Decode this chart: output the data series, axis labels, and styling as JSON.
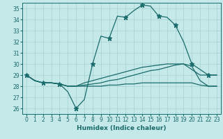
{
  "xlabel": "Humidex (Indice chaleur)",
  "xlim": [
    -0.5,
    23.5
  ],
  "ylim": [
    25.5,
    35.5
  ],
  "yticks": [
    26,
    27,
    28,
    29,
    30,
    31,
    32,
    33,
    34,
    35
  ],
  "xticks": [
    0,
    1,
    2,
    3,
    4,
    5,
    6,
    7,
    8,
    9,
    10,
    11,
    12,
    13,
    14,
    15,
    16,
    17,
    18,
    19,
    20,
    21,
    22,
    23
  ],
  "bg_color": "#c5e8e8",
  "grid_color": "#aad4d4",
  "line_color": "#1a6b6b",
  "lines": [
    [
      29.0,
      28.5,
      28.3,
      28.3,
      28.2,
      27.5,
      26.0,
      26.8,
      30.0,
      32.5,
      32.3,
      34.3,
      34.2,
      34.8,
      35.3,
      35.2,
      34.3,
      34.2,
      33.5,
      32.0,
      30.0,
      29.5,
      29.0,
      29.0
    ],
    [
      29.0,
      28.5,
      28.3,
      28.3,
      28.2,
      28.0,
      28.0,
      28.3,
      28.5,
      28.7,
      28.9,
      29.1,
      29.3,
      29.5,
      29.7,
      29.8,
      29.9,
      30.0,
      30.0,
      30.0,
      29.5,
      29.0,
      29.0,
      29.0
    ],
    [
      29.0,
      28.5,
      28.3,
      28.3,
      28.2,
      28.0,
      28.0,
      28.1,
      28.2,
      28.3,
      28.5,
      28.6,
      28.8,
      29.0,
      29.2,
      29.4,
      29.5,
      29.7,
      29.9,
      30.0,
      29.8,
      28.5,
      28.0,
      28.0
    ],
    [
      29.0,
      28.5,
      28.3,
      28.3,
      28.2,
      28.0,
      28.0,
      28.0,
      28.0,
      28.0,
      28.1,
      28.1,
      28.2,
      28.2,
      28.3,
      28.3,
      28.3,
      28.3,
      28.3,
      28.3,
      28.3,
      28.1,
      28.0,
      28.0
    ]
  ],
  "marker_line": 0,
  "marker_indices": [
    0,
    2,
    4,
    6,
    8,
    10,
    12,
    14,
    16,
    18,
    20,
    22
  ],
  "marker_style": "*",
  "marker_size": 5
}
